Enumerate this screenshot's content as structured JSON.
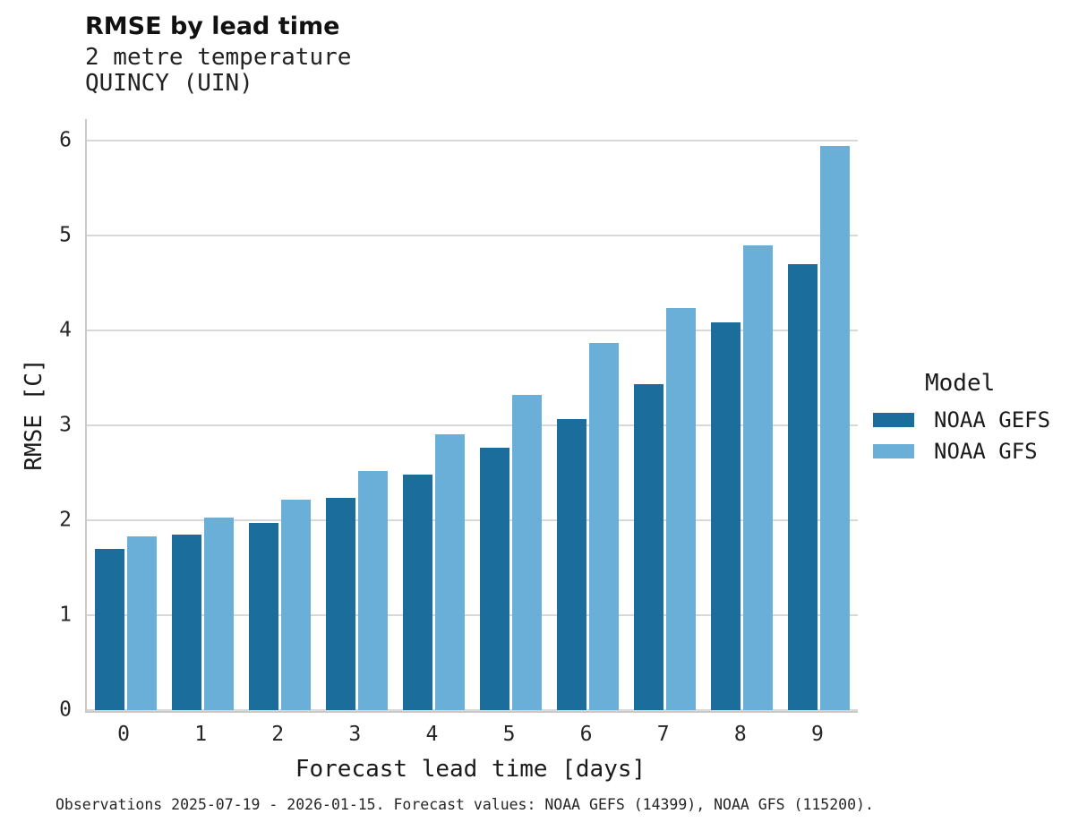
{
  "chart_data": {
    "type": "bar",
    "title": "RMSE by lead time",
    "subtitle": [
      "2 metre temperature",
      "QUINCY (UIN)"
    ],
    "categories": [
      "0",
      "1",
      "2",
      "3",
      "4",
      "5",
      "6",
      "7",
      "8",
      "9"
    ],
    "series": [
      {
        "name": "NOAA GEFS",
        "color": "#1b6d9c",
        "values": [
          1.7,
          1.85,
          1.97,
          2.24,
          2.48,
          2.77,
          3.07,
          3.44,
          4.09,
          4.7
        ]
      },
      {
        "name": "NOAA GFS",
        "color": "#69afd7",
        "values": [
          1.83,
          2.03,
          2.22,
          2.52,
          2.91,
          3.32,
          3.87,
          4.24,
          4.9,
          5.95
        ]
      }
    ],
    "xlabel": "Forecast lead time [days]",
    "ylabel": "RMSE [C]",
    "ylim": [
      0,
      6.23
    ],
    "yticks": [
      0,
      1,
      2,
      3,
      4,
      5,
      6
    ],
    "grid": "horizontal",
    "legend": {
      "title": "Model",
      "position": "right"
    },
    "footnote": "Observations 2025-07-19 - 2026-01-15. Forecast values: NOAA GEFS (14399), NOAA GFS (115200)."
  },
  "colors": {
    "grid": "#d8d8d8",
    "spine": "#c9c9c9",
    "text": "#222222"
  }
}
